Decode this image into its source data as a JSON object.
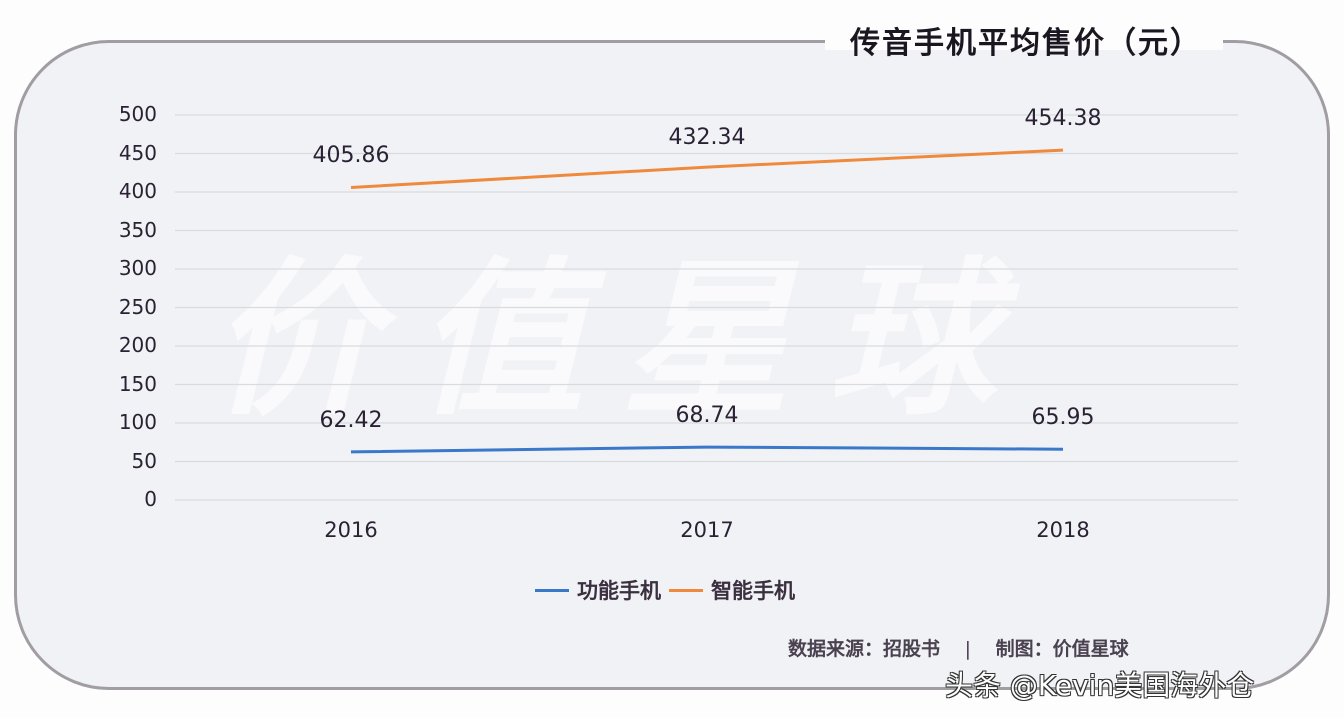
{
  "title": "传音手机平均售价（元）",
  "watermark": "价值星球",
  "legend": [
    {
      "label": "功能手机",
      "color": "#3a78c9"
    },
    {
      "label": "智能手机",
      "color": "#ef8a3c"
    }
  ],
  "source": {
    "data_source": "数据来源：招股书",
    "separator": "|",
    "made_by": "制图：价值星球"
  },
  "credit": "头条 @Kevin美国海外仓",
  "y_ticks": [
    "500",
    "450",
    "400",
    "350",
    "300",
    "250",
    "200",
    "150",
    "100",
    "50",
    "0"
  ],
  "x_ticks": [
    "2016",
    "2017",
    "2018"
  ],
  "labels": {
    "smart": [
      "405.86",
      "432.34",
      "454.38"
    ],
    "feature": [
      "62.42",
      "68.74",
      "65.95"
    ]
  },
  "chart_data": {
    "type": "line",
    "title": "传音手机平均售价（元）",
    "xlabel": "",
    "ylabel": "",
    "categories": [
      "2016",
      "2017",
      "2018"
    ],
    "series": [
      {
        "name": "功能手机",
        "color": "#3a78c9",
        "values": [
          62.42,
          68.74,
          65.95
        ]
      },
      {
        "name": "智能手机",
        "color": "#ef8a3c",
        "values": [
          405.86,
          432.34,
          454.38
        ]
      }
    ],
    "ylim": [
      0,
      500
    ],
    "y_ticks": [
      0,
      50,
      100,
      150,
      200,
      250,
      300,
      350,
      400,
      450,
      500
    ],
    "grid": true,
    "legend_position": "bottom",
    "data_labels": true
  }
}
